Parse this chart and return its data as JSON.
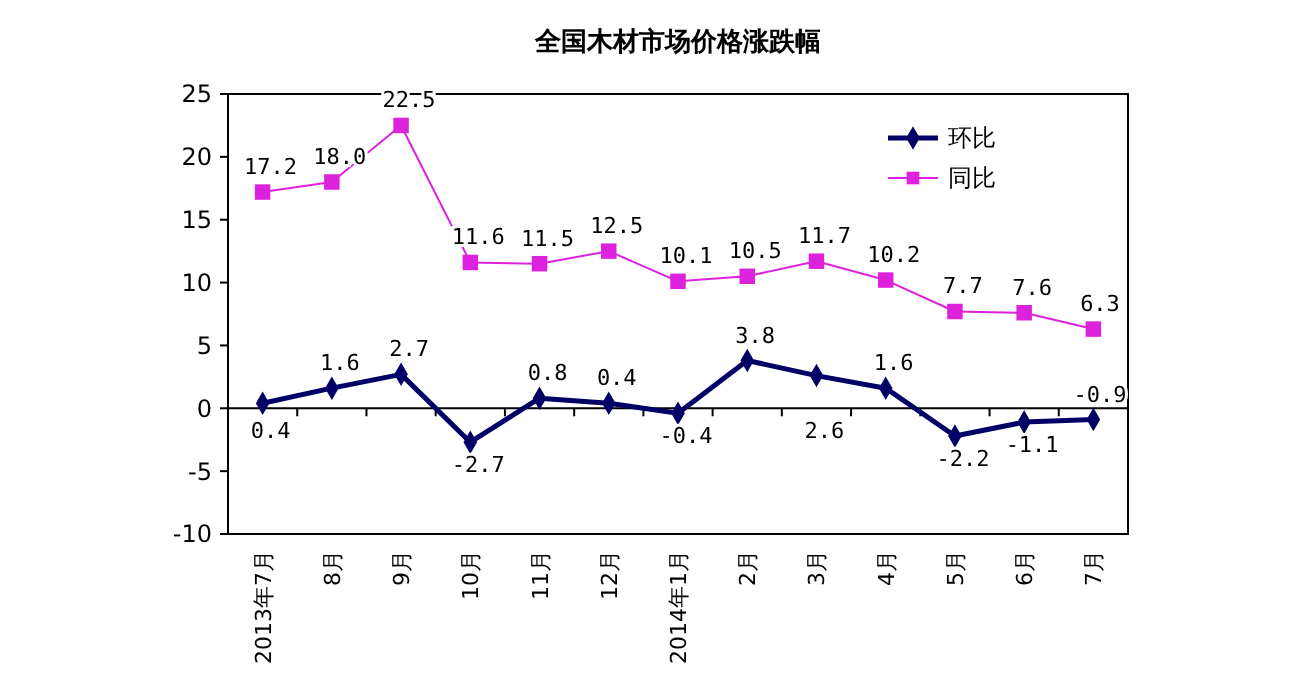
{
  "chart_data": {
    "type": "line",
    "title": "全国木材市场价格涨跌幅",
    "categories": [
      "2013年7月",
      "8月",
      "9月",
      "10月",
      "11月",
      "12月",
      "2014年1月",
      "2月",
      "3月",
      "4月",
      "5月",
      "6月",
      "7月"
    ],
    "series": [
      {
        "name": "环比",
        "color": "#000066",
        "marker": "diamond",
        "values": [
          0.4,
          1.6,
          2.7,
          -2.7,
          0.8,
          0.4,
          -0.4,
          3.8,
          2.6,
          1.6,
          -2.2,
          -1.1,
          -0.9
        ],
        "value_labels": [
          "0.4",
          "1.6",
          "2.7",
          "-2.7",
          "0.8",
          "0.4",
          "-0.4",
          "3.8",
          "2.6",
          "1.6",
          "-2.2",
          "-1.1",
          "-0.9"
        ]
      },
      {
        "name": "同比",
        "color": "#dd22dd",
        "marker": "square",
        "values": [
          17.2,
          18.0,
          22.5,
          11.6,
          11.5,
          12.5,
          10.1,
          10.5,
          11.7,
          10.2,
          7.7,
          7.6,
          6.3
        ],
        "value_labels": [
          "17.2",
          "18.0",
          "22.5",
          "11.6",
          "11.5",
          "12.5",
          "10.1",
          "10.5",
          "11.7",
          "10.2",
          "7.7",
          "7.6",
          "6.3"
        ]
      }
    ],
    "ylim": [
      -10,
      25
    ],
    "yticks": [
      -10,
      -5,
      0,
      5,
      10,
      15,
      20,
      25
    ],
    "legend": "top right"
  }
}
